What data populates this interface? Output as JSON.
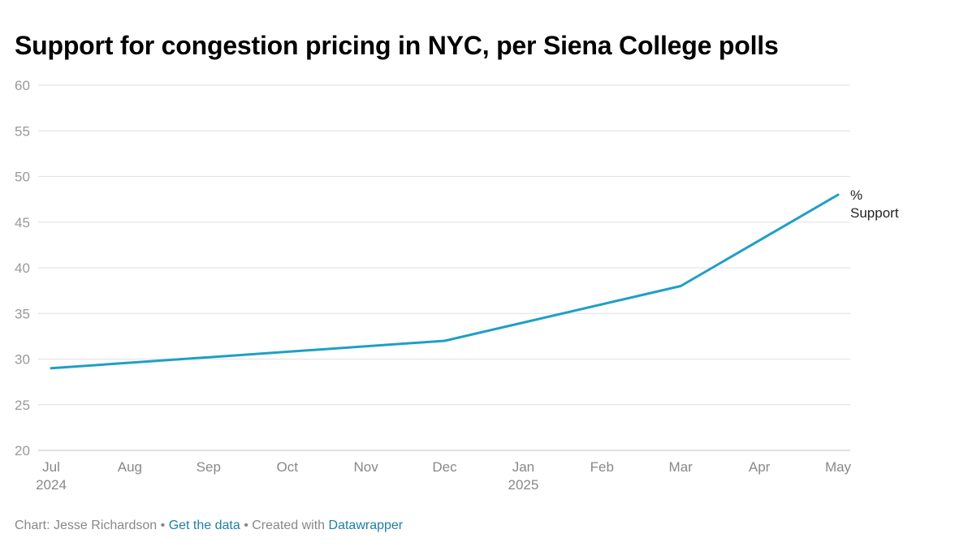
{
  "title": "Support for congestion pricing in NYC, per Siena College polls",
  "footer": {
    "prefix": "Chart: Jesse Richardson",
    "sep1": " • ",
    "get_data": "Get the data",
    "sep2": " • Created with ",
    "tool": "Datawrapper"
  },
  "colors": {
    "line": "#1f9fc5",
    "grid": "#e5e5e5",
    "tick_text": "#999999",
    "link": "#1d81a2"
  },
  "chart_data": {
    "type": "line",
    "title": "Support for congestion pricing in NYC, per Siena College polls",
    "xlabel": "",
    "ylabel": "",
    "ylim": [
      20,
      60
    ],
    "yticks": [
      "20",
      "25",
      "30",
      "35",
      "40",
      "45",
      "50",
      "55",
      "60"
    ],
    "x_ticks": [
      {
        "month": "Jul",
        "year": "2024"
      },
      {
        "month": "Aug",
        "year": ""
      },
      {
        "month": "Sep",
        "year": ""
      },
      {
        "month": "Oct",
        "year": ""
      },
      {
        "month": "Nov",
        "year": ""
      },
      {
        "month": "Dec",
        "year": ""
      },
      {
        "month": "Jan",
        "year": "2025"
      },
      {
        "month": "Feb",
        "year": ""
      },
      {
        "month": "Mar",
        "year": ""
      },
      {
        "month": "Apr",
        "year": ""
      },
      {
        "month": "May",
        "year": ""
      }
    ],
    "grid": true,
    "series": [
      {
        "name": "% Support",
        "label_lines": [
          "%",
          "Support"
        ],
        "points": [
          {
            "x": "2024-07",
            "y": 29
          },
          {
            "x": "2024-12",
            "y": 32
          },
          {
            "x": "2025-03",
            "y": 38
          },
          {
            "x": "2025-05",
            "y": 48
          }
        ]
      }
    ]
  }
}
